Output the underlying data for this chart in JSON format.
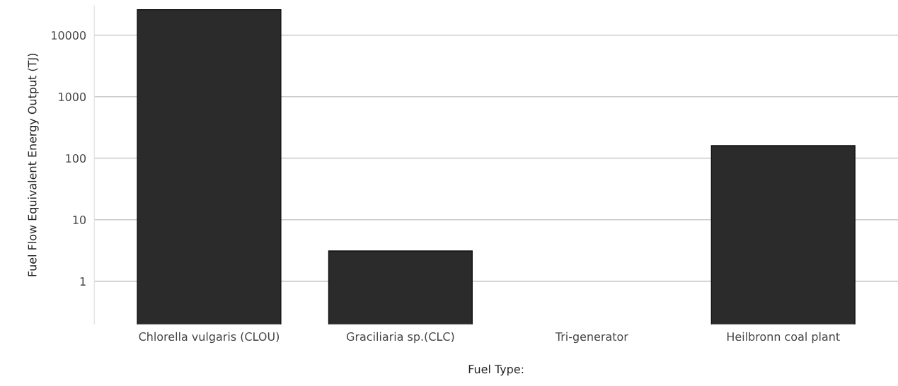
{
  "chart_data": {
    "type": "bar",
    "xlabel": "Fuel Type:",
    "ylabel": "Fuel Flow Equivalent Energy Output (TJ)",
    "categories": [
      "Chlorella vulgaris (CLOU)",
      "Graciliaria sp.(CLC)",
      "Tri-generator",
      "Heilbronn coal plant"
    ],
    "values": [
      26000,
      3.1,
      null,
      160
    ],
    "color": "#2b2b2b",
    "log": "y",
    "ylim": [
      0.2,
      30000
    ],
    "yticks": [
      1,
      10,
      100,
      1000,
      10000
    ],
    "grid": "y",
    "legend": false
  }
}
